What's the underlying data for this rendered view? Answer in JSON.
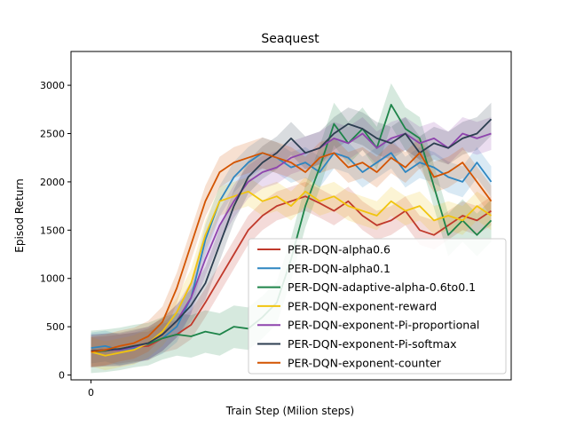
{
  "chart_data": {
    "type": "line",
    "title": "Seaquest",
    "xlabel": "Train Step (Milion steps)",
    "ylabel": "Episod Return",
    "x_ticks": [
      0
    ],
    "y_ticks": [
      0,
      500,
      1000,
      1500,
      2000,
      2500,
      3000
    ],
    "xlim": [
      -0.35,
      7.35
    ],
    "ylim": [
      -50,
      3350
    ],
    "grid": false,
    "legend_position": "lower-right",
    "x": [
      0,
      0.25,
      0.5,
      0.75,
      1,
      1.25,
      1.5,
      1.75,
      2,
      2.25,
      2.5,
      2.75,
      3,
      3.25,
      3.5,
      3.75,
      4,
      4.25,
      4.5,
      4.75,
      5,
      5.25,
      5.5,
      5.75,
      6,
      6.25,
      6.5,
      6.75,
      7
    ],
    "series": [
      {
        "name": "PER-DQN-alpha0.6",
        "color": "#c0392b",
        "band": 150,
        "values": [
          240,
          250,
          270,
          290,
          300,
          380,
          420,
          520,
          750,
          1000,
          1250,
          1500,
          1650,
          1750,
          1800,
          1850,
          1780,
          1700,
          1800,
          1650,
          1550,
          1600,
          1700,
          1500,
          1450,
          1550,
          1650,
          1600,
          1700
        ]
      },
      {
        "name": "PER-DQN-alpha0.1",
        "color": "#2e86c1",
        "band": 160,
        "values": [
          280,
          300,
          260,
          280,
          320,
          380,
          500,
          800,
          1400,
          1800,
          2050,
          2200,
          2300,
          2250,
          2150,
          2200,
          2100,
          2300,
          2250,
          2100,
          2200,
          2300,
          2100,
          2200,
          2150,
          2050,
          2000,
          2200,
          2000
        ]
      },
      {
        "name": "PER-DQN-adaptive-alpha-0.6to0.1",
        "color": "#1e8449",
        "band": 220,
        "values": [
          240,
          250,
          270,
          300,
          320,
          380,
          420,
          400,
          450,
          420,
          500,
          480,
          600,
          750,
          1200,
          1750,
          2150,
          2600,
          2400,
          2550,
          2350,
          2800,
          2550,
          2450,
          1950,
          1450,
          1600,
          1450,
          1600
        ]
      },
      {
        "name": "PER-DQN-exponent-reward",
        "color": "#f1c40f",
        "band": 150,
        "values": [
          240,
          200,
          230,
          260,
          330,
          450,
          650,
          950,
          1450,
          1800,
          1850,
          1900,
          1800,
          1850,
          1750,
          1900,
          1800,
          1850,
          1750,
          1700,
          1650,
          1800,
          1700,
          1750,
          1600,
          1650,
          1600,
          1750,
          1650
        ]
      },
      {
        "name": "PER-DQN-exponent-Pi-proportional",
        "color": "#8e44ad",
        "band": 170,
        "values": [
          250,
          260,
          260,
          290,
          330,
          420,
          560,
          800,
          1200,
          1550,
          1800,
          2000,
          2100,
          2150,
          2250,
          2300,
          2350,
          2450,
          2400,
          2500,
          2350,
          2450,
          2500,
          2400,
          2450,
          2350,
          2500,
          2450,
          2500
        ]
      },
      {
        "name": "PER-DQN-exponent-Pi-softmax",
        "color": "#2c3e50",
        "band": 170,
        "values": [
          250,
          260,
          270,
          300,
          330,
          420,
          560,
          720,
          950,
          1350,
          1750,
          2050,
          2200,
          2300,
          2450,
          2300,
          2350,
          2500,
          2600,
          2550,
          2450,
          2400,
          2500,
          2300,
          2400,
          2350,
          2450,
          2500,
          2650
        ]
      },
      {
        "name": "PER-DQN-exponent-counter",
        "color": "#d35400",
        "band": 160,
        "values": [
          240,
          260,
          300,
          330,
          400,
          550,
          900,
          1350,
          1800,
          2100,
          2200,
          2250,
          2300,
          2250,
          2200,
          2100,
          2250,
          2300,
          2150,
          2200,
          2100,
          2250,
          2150,
          2300,
          2050,
          2100,
          2200,
          2000,
          1800
        ]
      }
    ]
  }
}
